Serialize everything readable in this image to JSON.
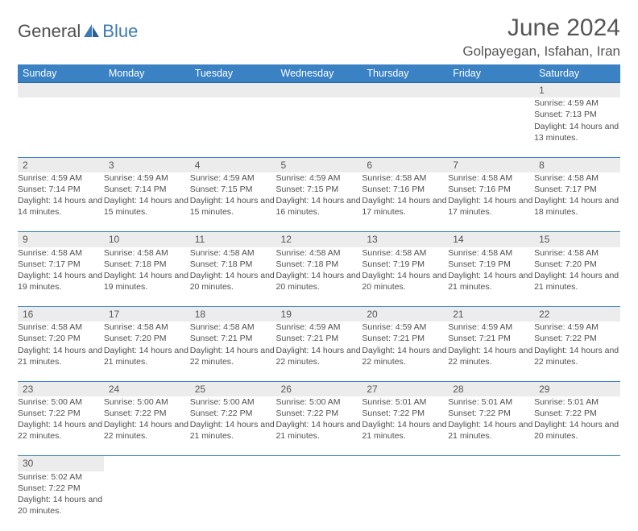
{
  "logo": {
    "text1": "General",
    "text2": "Blue"
  },
  "title": "June 2024",
  "location": "Golpayegan, Isfahan, Iran",
  "colors": {
    "header_bg": "#3a82c4",
    "header_text": "#ffffff",
    "daynum_bg": "#ececec",
    "border": "#3a82c4",
    "body_text": "#505050",
    "title_text": "#555555",
    "logo_blue": "#3a7ab8"
  },
  "day_headers": [
    "Sunday",
    "Monday",
    "Tuesday",
    "Wednesday",
    "Thursday",
    "Friday",
    "Saturday"
  ],
  "weeks": [
    [
      null,
      null,
      null,
      null,
      null,
      null,
      {
        "n": "1",
        "sr": "4:59 AM",
        "ss": "7:13 PM",
        "dl": "14 hours and 13 minutes."
      }
    ],
    [
      {
        "n": "2",
        "sr": "4:59 AM",
        "ss": "7:14 PM",
        "dl": "14 hours and 14 minutes."
      },
      {
        "n": "3",
        "sr": "4:59 AM",
        "ss": "7:14 PM",
        "dl": "14 hours and 15 minutes."
      },
      {
        "n": "4",
        "sr": "4:59 AM",
        "ss": "7:15 PM",
        "dl": "14 hours and 15 minutes."
      },
      {
        "n": "5",
        "sr": "4:59 AM",
        "ss": "7:15 PM",
        "dl": "14 hours and 16 minutes."
      },
      {
        "n": "6",
        "sr": "4:58 AM",
        "ss": "7:16 PM",
        "dl": "14 hours and 17 minutes."
      },
      {
        "n": "7",
        "sr": "4:58 AM",
        "ss": "7:16 PM",
        "dl": "14 hours and 17 minutes."
      },
      {
        "n": "8",
        "sr": "4:58 AM",
        "ss": "7:17 PM",
        "dl": "14 hours and 18 minutes."
      }
    ],
    [
      {
        "n": "9",
        "sr": "4:58 AM",
        "ss": "7:17 PM",
        "dl": "14 hours and 19 minutes."
      },
      {
        "n": "10",
        "sr": "4:58 AM",
        "ss": "7:18 PM",
        "dl": "14 hours and 19 minutes."
      },
      {
        "n": "11",
        "sr": "4:58 AM",
        "ss": "7:18 PM",
        "dl": "14 hours and 20 minutes."
      },
      {
        "n": "12",
        "sr": "4:58 AM",
        "ss": "7:18 PM",
        "dl": "14 hours and 20 minutes."
      },
      {
        "n": "13",
        "sr": "4:58 AM",
        "ss": "7:19 PM",
        "dl": "14 hours and 20 minutes."
      },
      {
        "n": "14",
        "sr": "4:58 AM",
        "ss": "7:19 PM",
        "dl": "14 hours and 21 minutes."
      },
      {
        "n": "15",
        "sr": "4:58 AM",
        "ss": "7:20 PM",
        "dl": "14 hours and 21 minutes."
      }
    ],
    [
      {
        "n": "16",
        "sr": "4:58 AM",
        "ss": "7:20 PM",
        "dl": "14 hours and 21 minutes."
      },
      {
        "n": "17",
        "sr": "4:58 AM",
        "ss": "7:20 PM",
        "dl": "14 hours and 21 minutes."
      },
      {
        "n": "18",
        "sr": "4:58 AM",
        "ss": "7:21 PM",
        "dl": "14 hours and 22 minutes."
      },
      {
        "n": "19",
        "sr": "4:59 AM",
        "ss": "7:21 PM",
        "dl": "14 hours and 22 minutes."
      },
      {
        "n": "20",
        "sr": "4:59 AM",
        "ss": "7:21 PM",
        "dl": "14 hours and 22 minutes."
      },
      {
        "n": "21",
        "sr": "4:59 AM",
        "ss": "7:21 PM",
        "dl": "14 hours and 22 minutes."
      },
      {
        "n": "22",
        "sr": "4:59 AM",
        "ss": "7:22 PM",
        "dl": "14 hours and 22 minutes."
      }
    ],
    [
      {
        "n": "23",
        "sr": "5:00 AM",
        "ss": "7:22 PM",
        "dl": "14 hours and 22 minutes."
      },
      {
        "n": "24",
        "sr": "5:00 AM",
        "ss": "7:22 PM",
        "dl": "14 hours and 22 minutes."
      },
      {
        "n": "25",
        "sr": "5:00 AM",
        "ss": "7:22 PM",
        "dl": "14 hours and 21 minutes."
      },
      {
        "n": "26",
        "sr": "5:00 AM",
        "ss": "7:22 PM",
        "dl": "14 hours and 21 minutes."
      },
      {
        "n": "27",
        "sr": "5:01 AM",
        "ss": "7:22 PM",
        "dl": "14 hours and 21 minutes."
      },
      {
        "n": "28",
        "sr": "5:01 AM",
        "ss": "7:22 PM",
        "dl": "14 hours and 21 minutes."
      },
      {
        "n": "29",
        "sr": "5:01 AM",
        "ss": "7:22 PM",
        "dl": "14 hours and 20 minutes."
      }
    ],
    [
      {
        "n": "30",
        "sr": "5:02 AM",
        "ss": "7:22 PM",
        "dl": "14 hours and 20 minutes."
      },
      null,
      null,
      null,
      null,
      null,
      null
    ]
  ],
  "labels": {
    "sunrise": "Sunrise: ",
    "sunset": "Sunset: ",
    "daylight": "Daylight: "
  }
}
